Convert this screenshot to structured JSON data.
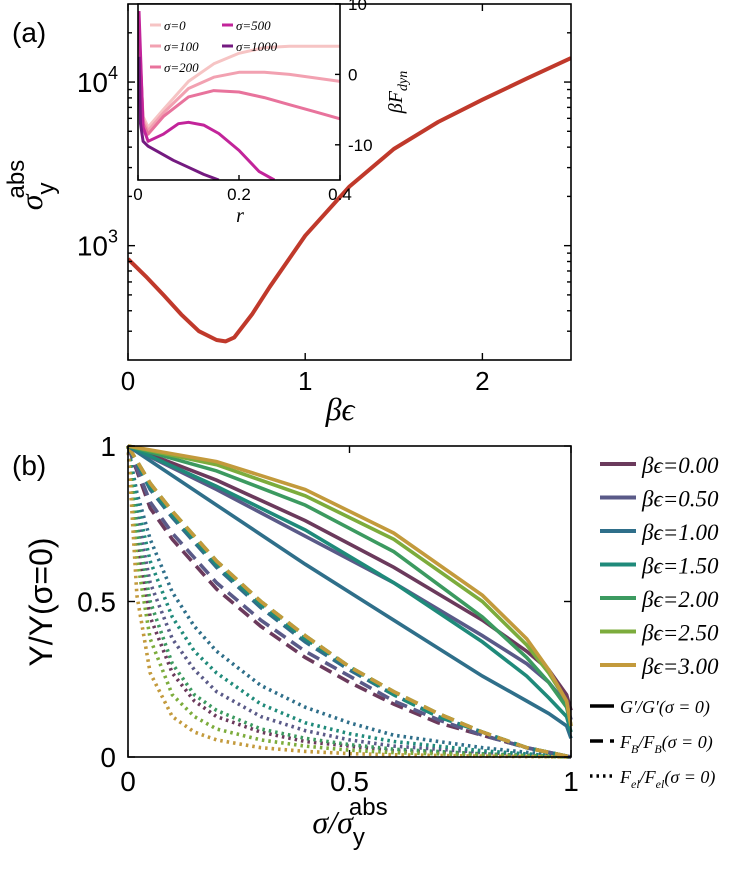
{
  "chart_data": [
    {
      "panel_label": "(a)",
      "type": "line",
      "xlabel": "βϵ",
      "ylabel_base": "σ",
      "ylabel_sub": "y",
      "ylabel_sup": "abs",
      "xlim": [
        0,
        2.5
      ],
      "ylim": [
        200,
        30000
      ],
      "yscale": "log",
      "xticks": [
        "0",
        "1",
        "2"
      ],
      "yticks": [
        {
          "base": "10",
          "exp": "3",
          "value": 1000
        },
        {
          "base": "10",
          "exp": "4",
          "value": 10000
        }
      ],
      "series": [
        {
          "color": "#c0392b",
          "x": [
            0,
            0.1,
            0.2,
            0.3,
            0.4,
            0.5,
            0.55,
            0.6,
            0.7,
            0.8,
            1.0,
            1.25,
            1.5,
            1.75,
            2.0,
            2.25,
            2.5
          ],
          "y": [
            830,
            650,
            500,
            380,
            300,
            265,
            260,
            275,
            380,
            560,
            1150,
            2300,
            3900,
            5700,
            7800,
            10500,
            14000
          ]
        }
      ]
    },
    {
      "panel_label": "inset",
      "type": "line",
      "xlabel": "r",
      "ylabel": "βF",
      "ylabel_sub": "dyn",
      "xlim": [
        0,
        0.4
      ],
      "ylim": [
        -15,
        10
      ],
      "xticks": [
        "0",
        "0.2",
        "0.4"
      ],
      "yticks": [
        "10",
        "0",
        "-10"
      ],
      "legend": [
        "σ=0",
        "σ=100",
        "σ=200",
        "σ=500",
        "σ=1000"
      ],
      "series": [
        {
          "name": "σ=0",
          "color": "#f6c4c4",
          "x": [
            0.002,
            0.01,
            0.02,
            0.05,
            0.1,
            0.15,
            0.2,
            0.25,
            0.3,
            0.35,
            0.4
          ],
          "y": [
            5,
            -6,
            -7.5,
            -5,
            -1,
            1.5,
            3,
            3.8,
            4,
            4,
            4
          ]
        },
        {
          "name": "σ=100",
          "color": "#f2a1b1",
          "x": [
            0.002,
            0.01,
            0.02,
            0.05,
            0.1,
            0.15,
            0.2,
            0.25,
            0.3,
            0.35,
            0.4
          ],
          "y": [
            6,
            -6.5,
            -8,
            -5.5,
            -2,
            -0.4,
            0.3,
            0.3,
            0,
            -0.5,
            -1
          ]
        },
        {
          "name": "σ=200",
          "color": "#e8739c",
          "x": [
            0.002,
            0.01,
            0.02,
            0.05,
            0.1,
            0.15,
            0.2,
            0.25,
            0.3,
            0.35,
            0.4
          ],
          "y": [
            7,
            -7,
            -8.5,
            -6,
            -3.2,
            -2.3,
            -2.5,
            -3.3,
            -4.3,
            -5.3,
            -6.3
          ]
        },
        {
          "name": "σ=500",
          "color": "#c2249a",
          "x": [
            0.002,
            0.01,
            0.02,
            0.05,
            0.08,
            0.1,
            0.13,
            0.16,
            0.2,
            0.24,
            0.27
          ],
          "y": [
            9,
            -7.5,
            -9.5,
            -8.5,
            -7,
            -6.8,
            -7.2,
            -8.4,
            -10.8,
            -13.8,
            -15
          ]
        },
        {
          "name": "σ=1000",
          "color": "#741a80",
          "x": [
            0.002,
            0.005,
            0.01,
            0.02,
            0.04,
            0.07,
            0.1,
            0.13,
            0.16
          ],
          "y": [
            2.5,
            -7,
            -9.5,
            -10.2,
            -11,
            -12.2,
            -13.2,
            -14.2,
            -15
          ]
        }
      ]
    },
    {
      "panel_label": "(b)",
      "type": "line",
      "xlabel_base": "σ/σ",
      "xlabel_sub": "y",
      "xlabel_sup": "abs",
      "ylabel": "Y/Y(σ=0)",
      "xlim": [
        0,
        1
      ],
      "ylim": [
        0,
        1
      ],
      "xticks": [
        "0",
        "0.5",
        "1"
      ],
      "yticks": [
        "0",
        "0.5",
        "1"
      ],
      "legend": [
        "βϵ=0.00",
        "βϵ=0.50",
        "βϵ=1.00",
        "βϵ=1.50",
        "βϵ=2.00",
        "βϵ=2.50",
        "βϵ=3.00"
      ],
      "style_legend": {
        "solid": {
          "base": "G′/G′",
          "rest": "(σ = 0)"
        },
        "dashed": {
          "base": "F",
          "sub": "B",
          "mid": "/F",
          "sub2": "B",
          "rest": "(σ = 0)"
        },
        "dotted": {
          "base": "F",
          "sub": "el",
          "mid": "/F",
          "sub2": "el",
          "rest": "(σ = 0)"
        }
      },
      "series": [
        {
          "name": "βϵ=0.00",
          "color": "#6b3a5c",
          "solid": {
            "x": [
              0,
              0.2,
              0.4,
              0.6,
              0.8,
              0.9,
              0.95,
              0.99,
              1
            ],
            "y": [
              1,
              0.89,
              0.76,
              0.61,
              0.44,
              0.34,
              0.28,
              0.2,
              0.15
            ]
          },
          "dashed": {
            "x": [
              0,
              0.05,
              0.1,
              0.2,
              0.3,
              0.4,
              0.5,
              0.6,
              0.7,
              0.8,
              0.9,
              1
            ],
            "y": [
              1,
              0.8,
              0.7,
              0.54,
              0.42,
              0.32,
              0.24,
              0.17,
              0.11,
              0.07,
              0.03,
              0
            ]
          },
          "dotted": {
            "x": [
              0,
              0.02,
              0.05,
              0.1,
              0.15,
              0.2,
              0.3,
              0.4,
              0.5,
              0.6,
              0.8,
              1
            ],
            "y": [
              1,
              0.7,
              0.45,
              0.27,
              0.18,
              0.13,
              0.08,
              0.05,
              0.035,
              0.02,
              0.01,
              0
            ]
          }
        },
        {
          "name": "βϵ=0.50",
          "color": "#5a5a88",
          "solid": {
            "x": [
              0,
              0.2,
              0.4,
              0.6,
              0.8,
              0.9,
              0.95,
              0.99,
              1
            ],
            "y": [
              1,
              0.86,
              0.71,
              0.56,
              0.39,
              0.3,
              0.24,
              0.17,
              0.12
            ]
          },
          "dashed": {
            "x": [
              0,
              0.05,
              0.1,
              0.2,
              0.3,
              0.4,
              0.5,
              0.6,
              0.7,
              0.8,
              0.9,
              1
            ],
            "y": [
              1,
              0.82,
              0.72,
              0.56,
              0.44,
              0.34,
              0.26,
              0.18,
              0.12,
              0.07,
              0.03,
              0
            ]
          },
          "dotted": {
            "x": [
              0,
              0.02,
              0.05,
              0.1,
              0.15,
              0.2,
              0.3,
              0.4,
              0.5,
              0.6,
              0.8,
              1
            ],
            "y": [
              1,
              0.78,
              0.56,
              0.38,
              0.28,
              0.21,
              0.13,
              0.085,
              0.055,
              0.035,
              0.015,
              0
            ]
          }
        },
        {
          "name": "βϵ=1.00",
          "color": "#2f6f8a",
          "solid": {
            "x": [
              0,
              0.2,
              0.4,
              0.6,
              0.8,
              0.9,
              0.95,
              0.99,
              1
            ],
            "y": [
              1,
              0.81,
              0.62,
              0.44,
              0.26,
              0.18,
              0.14,
              0.1,
              0.06
            ]
          },
          "dashed": {
            "x": [
              0,
              0.05,
              0.1,
              0.2,
              0.3,
              0.4,
              0.5,
              0.6,
              0.7,
              0.8,
              0.9,
              1
            ],
            "y": [
              1,
              0.86,
              0.77,
              0.61,
              0.48,
              0.37,
              0.28,
              0.2,
              0.13,
              0.08,
              0.03,
              0
            ]
          },
          "dotted": {
            "x": [
              0,
              0.02,
              0.05,
              0.1,
              0.15,
              0.2,
              0.3,
              0.4,
              0.5,
              0.6,
              0.8,
              1
            ],
            "y": [
              1,
              0.85,
              0.7,
              0.53,
              0.42,
              0.34,
              0.23,
              0.16,
              0.11,
              0.07,
              0.03,
              0
            ]
          }
        },
        {
          "name": "βϵ=1.50",
          "color": "#1f8a7a",
          "solid": {
            "x": [
              0,
              0.2,
              0.4,
              0.6,
              0.8,
              0.9,
              0.95,
              0.99,
              1
            ],
            "y": [
              1,
              0.87,
              0.73,
              0.56,
              0.37,
              0.26,
              0.19,
              0.13,
              0.08
            ]
          },
          "dashed": {
            "x": [
              0,
              0.05,
              0.1,
              0.2,
              0.3,
              0.4,
              0.5,
              0.6,
              0.7,
              0.8,
              0.9,
              1
            ],
            "y": [
              1,
              0.87,
              0.78,
              0.62,
              0.49,
              0.38,
              0.29,
              0.2,
              0.13,
              0.08,
              0.03,
              0
            ]
          },
          "dotted": {
            "x": [
              0,
              0.02,
              0.05,
              0.1,
              0.15,
              0.2,
              0.3,
              0.4,
              0.5,
              0.6,
              0.8,
              1
            ],
            "y": [
              1,
              0.82,
              0.63,
              0.45,
              0.34,
              0.27,
              0.17,
              0.11,
              0.075,
              0.05,
              0.02,
              0
            ]
          }
        },
        {
          "name": "βϵ=2.00",
          "color": "#3c9a60",
          "solid": {
            "x": [
              0,
              0.2,
              0.4,
              0.6,
              0.8,
              0.9,
              0.95,
              0.99,
              1
            ],
            "y": [
              1,
              0.92,
              0.81,
              0.66,
              0.45,
              0.32,
              0.24,
              0.16,
              0.1
            ]
          },
          "dashed": {
            "x": [
              0,
              0.05,
              0.1,
              0.2,
              0.3,
              0.4,
              0.5,
              0.6,
              0.7,
              0.8,
              0.9,
              1
            ],
            "y": [
              1,
              0.88,
              0.79,
              0.63,
              0.5,
              0.39,
              0.29,
              0.21,
              0.14,
              0.08,
              0.03,
              0
            ]
          },
          "dotted": {
            "x": [
              0,
              0.02,
              0.05,
              0.1,
              0.15,
              0.2,
              0.3,
              0.4,
              0.5,
              0.6,
              0.8,
              1
            ],
            "y": [
              1,
              0.74,
              0.5,
              0.3,
              0.2,
              0.15,
              0.09,
              0.06,
              0.04,
              0.025,
              0.01,
              0
            ]
          }
        },
        {
          "name": "βϵ=2.50",
          "color": "#7cac3c",
          "solid": {
            "x": [
              0,
              0.2,
              0.4,
              0.6,
              0.8,
              0.9,
              0.95,
              0.99,
              1
            ],
            "y": [
              1,
              0.94,
              0.84,
              0.7,
              0.5,
              0.36,
              0.27,
              0.18,
              0.1
            ]
          },
          "dashed": {
            "x": [
              0,
              0.05,
              0.1,
              0.2,
              0.3,
              0.4,
              0.5,
              0.6,
              0.7,
              0.8,
              0.9,
              1
            ],
            "y": [
              1,
              0.88,
              0.79,
              0.63,
              0.5,
              0.39,
              0.29,
              0.21,
              0.14,
              0.08,
              0.03,
              0
            ]
          },
          "dotted": {
            "x": [
              0,
              0.02,
              0.05,
              0.1,
              0.15,
              0.2,
              0.3,
              0.4,
              0.5,
              0.6,
              0.8,
              1
            ],
            "y": [
              1,
              0.64,
              0.38,
              0.2,
              0.13,
              0.09,
              0.055,
              0.035,
              0.022,
              0.014,
              0.006,
              0
            ]
          }
        },
        {
          "name": "βϵ=3.00",
          "color": "#c39a3c",
          "solid": {
            "x": [
              0,
              0.2,
              0.4,
              0.6,
              0.8,
              0.9,
              0.95,
              0.99,
              1
            ],
            "y": [
              1,
              0.95,
              0.86,
              0.72,
              0.52,
              0.38,
              0.28,
              0.18,
              0.1
            ]
          },
          "dashed": {
            "x": [
              0,
              0.05,
              0.1,
              0.2,
              0.3,
              0.4,
              0.5,
              0.6,
              0.7,
              0.8,
              0.9,
              1
            ],
            "y": [
              1,
              0.88,
              0.79,
              0.63,
              0.5,
              0.39,
              0.29,
              0.21,
              0.14,
              0.08,
              0.03,
              0
            ]
          },
          "dotted": {
            "x": [
              0,
              0.02,
              0.05,
              0.1,
              0.15,
              0.2,
              0.3,
              0.4,
              0.5,
              0.6,
              0.8,
              1
            ],
            "y": [
              1,
              0.52,
              0.27,
              0.13,
              0.08,
              0.055,
              0.03,
              0.018,
              0.011,
              0.007,
              0.003,
              0
            ]
          }
        }
      ]
    }
  ]
}
